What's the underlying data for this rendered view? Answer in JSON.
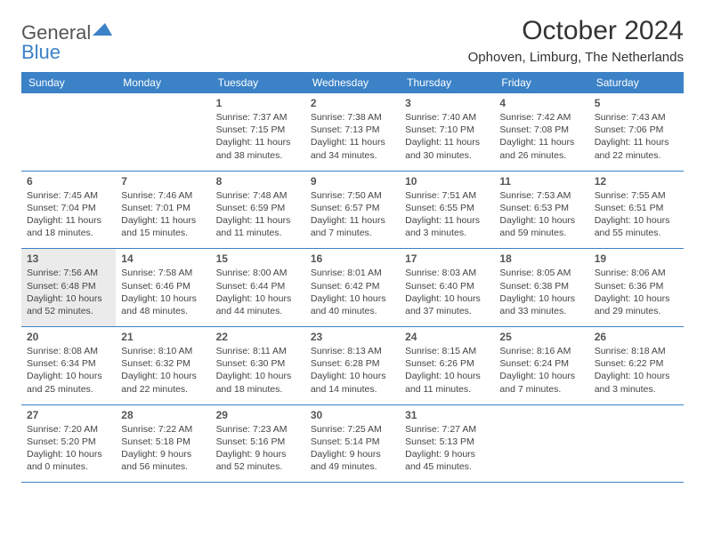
{
  "logo": {
    "text1": "General",
    "text2": "Blue"
  },
  "title": "October 2024",
  "location": "Ophoven, Limburg, The Netherlands",
  "weekdays": [
    "Sunday",
    "Monday",
    "Tuesday",
    "Wednesday",
    "Thursday",
    "Friday",
    "Saturday"
  ],
  "header_bg": "#3b82c7",
  "shaded_bg": "#ebebeb",
  "weeks": [
    [
      {
        "n": "",
        "sunrise": "",
        "sunset": "",
        "daylight": "",
        "shaded": false
      },
      {
        "n": "",
        "sunrise": "",
        "sunset": "",
        "daylight": "",
        "shaded": false
      },
      {
        "n": "1",
        "sunrise": "Sunrise: 7:37 AM",
        "sunset": "Sunset: 7:15 PM",
        "daylight": "Daylight: 11 hours and 38 minutes.",
        "shaded": false
      },
      {
        "n": "2",
        "sunrise": "Sunrise: 7:38 AM",
        "sunset": "Sunset: 7:13 PM",
        "daylight": "Daylight: 11 hours and 34 minutes.",
        "shaded": false
      },
      {
        "n": "3",
        "sunrise": "Sunrise: 7:40 AM",
        "sunset": "Sunset: 7:10 PM",
        "daylight": "Daylight: 11 hours and 30 minutes.",
        "shaded": false
      },
      {
        "n": "4",
        "sunrise": "Sunrise: 7:42 AM",
        "sunset": "Sunset: 7:08 PM",
        "daylight": "Daylight: 11 hours and 26 minutes.",
        "shaded": false
      },
      {
        "n": "5",
        "sunrise": "Sunrise: 7:43 AM",
        "sunset": "Sunset: 7:06 PM",
        "daylight": "Daylight: 11 hours and 22 minutes.",
        "shaded": false
      }
    ],
    [
      {
        "n": "6",
        "sunrise": "Sunrise: 7:45 AM",
        "sunset": "Sunset: 7:04 PM",
        "daylight": "Daylight: 11 hours and 18 minutes.",
        "shaded": false
      },
      {
        "n": "7",
        "sunrise": "Sunrise: 7:46 AM",
        "sunset": "Sunset: 7:01 PM",
        "daylight": "Daylight: 11 hours and 15 minutes.",
        "shaded": false
      },
      {
        "n": "8",
        "sunrise": "Sunrise: 7:48 AM",
        "sunset": "Sunset: 6:59 PM",
        "daylight": "Daylight: 11 hours and 11 minutes.",
        "shaded": false
      },
      {
        "n": "9",
        "sunrise": "Sunrise: 7:50 AM",
        "sunset": "Sunset: 6:57 PM",
        "daylight": "Daylight: 11 hours and 7 minutes.",
        "shaded": false
      },
      {
        "n": "10",
        "sunrise": "Sunrise: 7:51 AM",
        "sunset": "Sunset: 6:55 PM",
        "daylight": "Daylight: 11 hours and 3 minutes.",
        "shaded": false
      },
      {
        "n": "11",
        "sunrise": "Sunrise: 7:53 AM",
        "sunset": "Sunset: 6:53 PM",
        "daylight": "Daylight: 10 hours and 59 minutes.",
        "shaded": false
      },
      {
        "n": "12",
        "sunrise": "Sunrise: 7:55 AM",
        "sunset": "Sunset: 6:51 PM",
        "daylight": "Daylight: 10 hours and 55 minutes.",
        "shaded": false
      }
    ],
    [
      {
        "n": "13",
        "sunrise": "Sunrise: 7:56 AM",
        "sunset": "Sunset: 6:48 PM",
        "daylight": "Daylight: 10 hours and 52 minutes.",
        "shaded": true
      },
      {
        "n": "14",
        "sunrise": "Sunrise: 7:58 AM",
        "sunset": "Sunset: 6:46 PM",
        "daylight": "Daylight: 10 hours and 48 minutes.",
        "shaded": false
      },
      {
        "n": "15",
        "sunrise": "Sunrise: 8:00 AM",
        "sunset": "Sunset: 6:44 PM",
        "daylight": "Daylight: 10 hours and 44 minutes.",
        "shaded": false
      },
      {
        "n": "16",
        "sunrise": "Sunrise: 8:01 AM",
        "sunset": "Sunset: 6:42 PM",
        "daylight": "Daylight: 10 hours and 40 minutes.",
        "shaded": false
      },
      {
        "n": "17",
        "sunrise": "Sunrise: 8:03 AM",
        "sunset": "Sunset: 6:40 PM",
        "daylight": "Daylight: 10 hours and 37 minutes.",
        "shaded": false
      },
      {
        "n": "18",
        "sunrise": "Sunrise: 8:05 AM",
        "sunset": "Sunset: 6:38 PM",
        "daylight": "Daylight: 10 hours and 33 minutes.",
        "shaded": false
      },
      {
        "n": "19",
        "sunrise": "Sunrise: 8:06 AM",
        "sunset": "Sunset: 6:36 PM",
        "daylight": "Daylight: 10 hours and 29 minutes.",
        "shaded": false
      }
    ],
    [
      {
        "n": "20",
        "sunrise": "Sunrise: 8:08 AM",
        "sunset": "Sunset: 6:34 PM",
        "daylight": "Daylight: 10 hours and 25 minutes.",
        "shaded": false
      },
      {
        "n": "21",
        "sunrise": "Sunrise: 8:10 AM",
        "sunset": "Sunset: 6:32 PM",
        "daylight": "Daylight: 10 hours and 22 minutes.",
        "shaded": false
      },
      {
        "n": "22",
        "sunrise": "Sunrise: 8:11 AM",
        "sunset": "Sunset: 6:30 PM",
        "daylight": "Daylight: 10 hours and 18 minutes.",
        "shaded": false
      },
      {
        "n": "23",
        "sunrise": "Sunrise: 8:13 AM",
        "sunset": "Sunset: 6:28 PM",
        "daylight": "Daylight: 10 hours and 14 minutes.",
        "shaded": false
      },
      {
        "n": "24",
        "sunrise": "Sunrise: 8:15 AM",
        "sunset": "Sunset: 6:26 PM",
        "daylight": "Daylight: 10 hours and 11 minutes.",
        "shaded": false
      },
      {
        "n": "25",
        "sunrise": "Sunrise: 8:16 AM",
        "sunset": "Sunset: 6:24 PM",
        "daylight": "Daylight: 10 hours and 7 minutes.",
        "shaded": false
      },
      {
        "n": "26",
        "sunrise": "Sunrise: 8:18 AM",
        "sunset": "Sunset: 6:22 PM",
        "daylight": "Daylight: 10 hours and 3 minutes.",
        "shaded": false
      }
    ],
    [
      {
        "n": "27",
        "sunrise": "Sunrise: 7:20 AM",
        "sunset": "Sunset: 5:20 PM",
        "daylight": "Daylight: 10 hours and 0 minutes.",
        "shaded": false
      },
      {
        "n": "28",
        "sunrise": "Sunrise: 7:22 AM",
        "sunset": "Sunset: 5:18 PM",
        "daylight": "Daylight: 9 hours and 56 minutes.",
        "shaded": false
      },
      {
        "n": "29",
        "sunrise": "Sunrise: 7:23 AM",
        "sunset": "Sunset: 5:16 PM",
        "daylight": "Daylight: 9 hours and 52 minutes.",
        "shaded": false
      },
      {
        "n": "30",
        "sunrise": "Sunrise: 7:25 AM",
        "sunset": "Sunset: 5:14 PM",
        "daylight": "Daylight: 9 hours and 49 minutes.",
        "shaded": false
      },
      {
        "n": "31",
        "sunrise": "Sunrise: 7:27 AM",
        "sunset": "Sunset: 5:13 PM",
        "daylight": "Daylight: 9 hours and 45 minutes.",
        "shaded": false
      },
      {
        "n": "",
        "sunrise": "",
        "sunset": "",
        "daylight": "",
        "shaded": false
      },
      {
        "n": "",
        "sunrise": "",
        "sunset": "",
        "daylight": "",
        "shaded": false
      }
    ]
  ]
}
